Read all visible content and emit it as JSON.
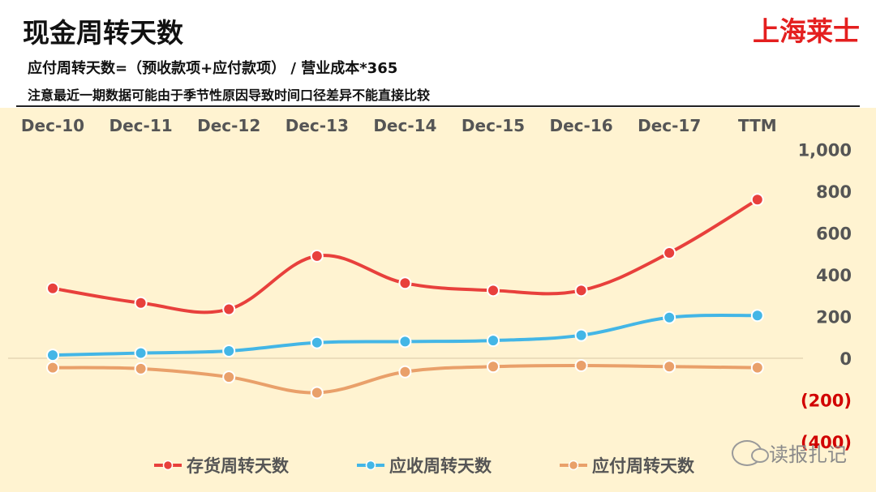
{
  "header": {
    "title": "现金周转天数",
    "brand": "上海莱士",
    "formula": "应付周转天数=（预收款项+应付款项） / 营业成本*365",
    "note": "注意最近一期数据可能由于季节性原因导致时间口径差异不能直接比较"
  },
  "watermark": {
    "text": "读报扎记",
    "icon": "wechat-icon"
  },
  "colors": {
    "background": "#fff3d1",
    "inventory": "#e8403c",
    "receivable": "#43b6e6",
    "payable": "#e9a06a",
    "negative_tick": "#d10000"
  },
  "chart_data": {
    "type": "line",
    "categories": [
      "Dec-10",
      "Dec-11",
      "Dec-12",
      "Dec-13",
      "Dec-14",
      "Dec-15",
      "Dec-16",
      "Dec-17",
      "TTM"
    ],
    "series": [
      {
        "name": "存货周转天数",
        "values": [
          335,
          265,
          235,
          490,
          360,
          325,
          325,
          505,
          760
        ]
      },
      {
        "name": "应收周转天数",
        "values": [
          15,
          25,
          35,
          75,
          80,
          85,
          110,
          195,
          205
        ]
      },
      {
        "name": "应付周转天数",
        "values": [
          -45,
          -50,
          -90,
          -165,
          -65,
          -40,
          -35,
          -40,
          -45
        ]
      }
    ],
    "ylim": [
      -400,
      1000
    ],
    "yticks": [
      {
        "value": 1000,
        "label": "1,000"
      },
      {
        "value": 800,
        "label": "800"
      },
      {
        "value": 600,
        "label": "600"
      },
      {
        "value": 400,
        "label": "400"
      },
      {
        "value": 200,
        "label": "200"
      },
      {
        "value": 0,
        "label": "0"
      },
      {
        "value": -200,
        "label": "(200)"
      },
      {
        "value": -400,
        "label": "(400)"
      }
    ],
    "x_axis_position": "top",
    "y_axis_position": "right",
    "legend_position": "bottom",
    "grid": false,
    "title": "现金周转天数"
  }
}
